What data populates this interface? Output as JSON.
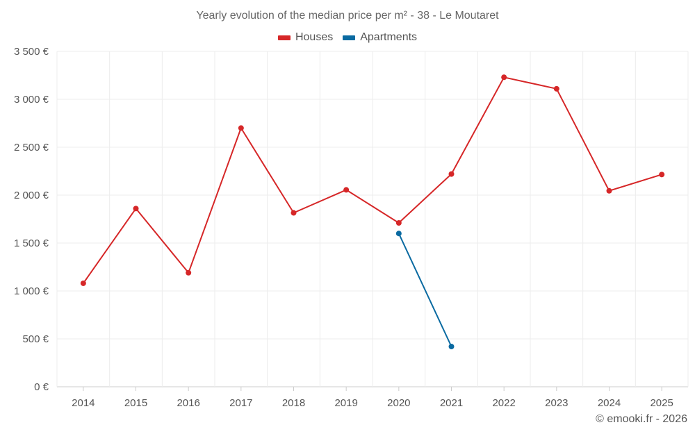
{
  "chart_data": {
    "type": "line",
    "title": "Yearly evolution of the median price per m² - 38 - Le Moutaret",
    "categories": [
      "2014",
      "2015",
      "2016",
      "2017",
      "2018",
      "2019",
      "2020",
      "2021",
      "2022",
      "2023",
      "2024",
      "2025"
    ],
    "series": [
      {
        "name": "Houses",
        "color": "#d62728",
        "values": [
          1080,
          1860,
          1190,
          2700,
          1815,
          2055,
          1710,
          2220,
          3230,
          3110,
          2045,
          2215
        ]
      },
      {
        "name": "Apartments",
        "color": "#0a6aa1",
        "values": [
          null,
          null,
          null,
          null,
          null,
          null,
          1600,
          420,
          null,
          null,
          null,
          null
        ]
      }
    ],
    "ylim": [
      0,
      3500
    ],
    "yticks": [
      0,
      500,
      1000,
      1500,
      2000,
      2500,
      3000,
      3500
    ],
    "ytick_labels": [
      "0 €",
      "500 €",
      "1 000 €",
      "1 500 €",
      "2 000 €",
      "2 500 €",
      "3 000 €",
      "3 500 €"
    ],
    "grid": true,
    "legend_position": "top-center",
    "xlabel": "",
    "ylabel": ""
  },
  "credit": "© emooki.fr - 2026"
}
